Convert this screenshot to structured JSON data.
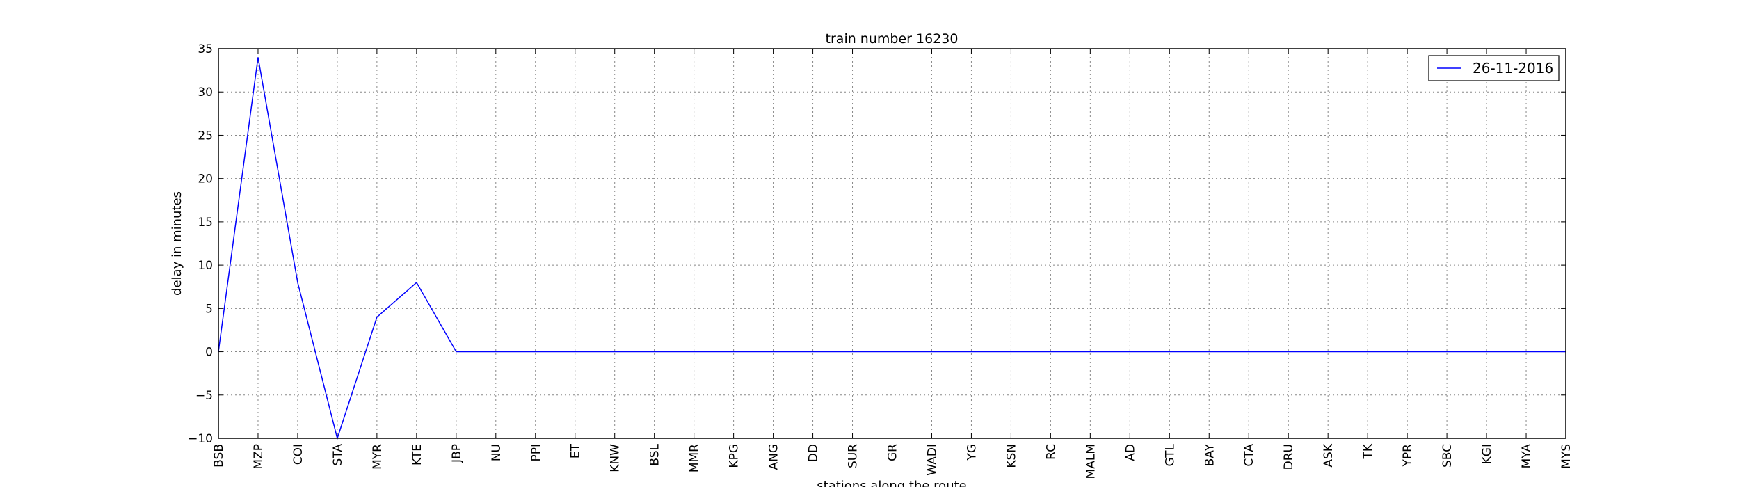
{
  "chart_data": {
    "type": "line",
    "title": "train number 16230",
    "xlabel": "stations along the route",
    "ylabel": "delay in minutes",
    "ylim": [
      -10,
      35
    ],
    "yticks": [
      -10,
      -5,
      0,
      5,
      10,
      15,
      20,
      25,
      30,
      35
    ],
    "ytick_labels": [
      "−10",
      "−5",
      "0",
      "5",
      "10",
      "15",
      "20",
      "25",
      "30",
      "35"
    ],
    "grid": true,
    "legend_position": "top-right",
    "categories": [
      "BSB",
      "MZP",
      "COI",
      "STA",
      "MYR",
      "KTE",
      "JBP",
      "NU",
      "PPI",
      "ET",
      "KNW",
      "BSL",
      "MMR",
      "KPG",
      "ANG",
      "DD",
      "SUR",
      "GR",
      "WADI",
      "YG",
      "KSN",
      "RC",
      "MALM",
      "AD",
      "GTL",
      "BAY",
      "CTA",
      "DRU",
      "ASK",
      "TK",
      "YPR",
      "SBC",
      "KGI",
      "MYA",
      "MYS"
    ],
    "series": [
      {
        "name": "26-11-2016",
        "color": "#0000ff",
        "values": [
          0,
          34,
          8,
          -10,
          4,
          8,
          0,
          0,
          0,
          0,
          0,
          0,
          0,
          0,
          0,
          0,
          0,
          0,
          0,
          0,
          0,
          0,
          0,
          0,
          0,
          0,
          0,
          0,
          0,
          0,
          0,
          0,
          0,
          0,
          0
        ]
      }
    ]
  }
}
